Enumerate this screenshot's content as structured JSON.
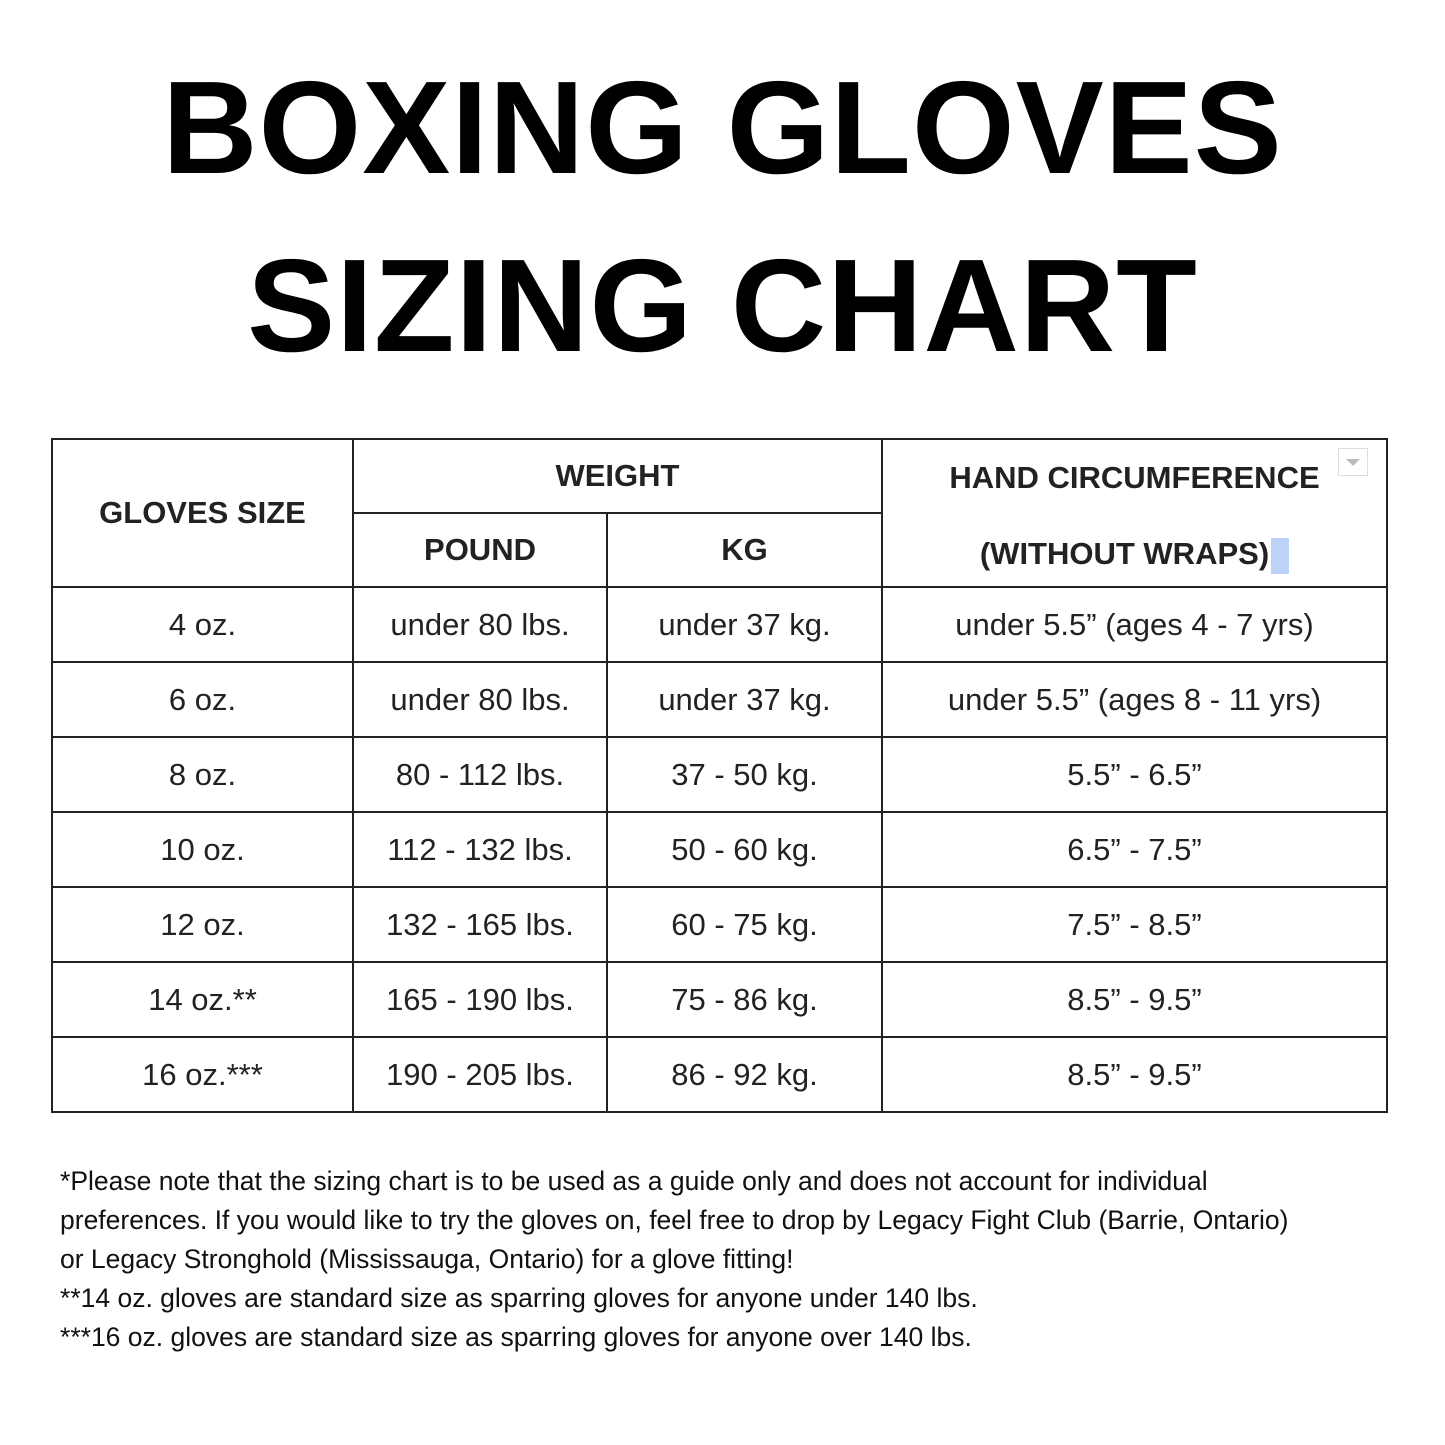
{
  "title": {
    "line1": "BOXING GLOVES",
    "line2": "SIZING CHART"
  },
  "table": {
    "headers": {
      "gloves_size": "GLOVES SIZE",
      "weight": "WEIGHT",
      "pound": "POUND",
      "kg": "KG",
      "hand_line1": "HAND CIRCUMFERENCE",
      "hand_line2": "(WITHOUT WRAPS)"
    },
    "rows": [
      [
        "4 oz.",
        "under 80 lbs.",
        "under 37 kg.",
        "under 5.5” (ages 4 - 7 yrs)"
      ],
      [
        "6 oz.",
        "under 80 lbs.",
        "under 37 kg.",
        "under 5.5” (ages 8 - 11 yrs)"
      ],
      [
        "8 oz.",
        "80 - 112 lbs.",
        "37 - 50 kg.",
        "5.5” - 6.5”"
      ],
      [
        "10 oz.",
        "112 - 132 lbs.",
        "50 - 60 kg.",
        "6.5” - 7.5”"
      ],
      [
        "12 oz.",
        "132 - 165 lbs.",
        "60 - 75 kg.",
        "7.5” - 8.5”"
      ],
      [
        "14 oz.**",
        "165 - 190 lbs.",
        "75 - 86 kg.",
        "8.5” - 9.5”"
      ],
      [
        "16 oz.***",
        "190 - 205 lbs.",
        "86 - 92 kg.",
        "8.5” - 9.5”"
      ]
    ]
  },
  "notes": [
    "*Please note that the sizing chart is to be used as a guide only and does not account for individual",
    "preferences. If you would like to try the gloves on, feel free to drop by Legacy Fight Club (Barrie, Ontario)",
    "or Legacy Stronghold (Mississauga, Ontario) for a glove fitting!",
    "**14 oz. gloves are standard size as sparring gloves for anyone under 140 lbs.",
    "***16 oz. gloves are standard size as sparring gloves for anyone over 140 lbs."
  ]
}
